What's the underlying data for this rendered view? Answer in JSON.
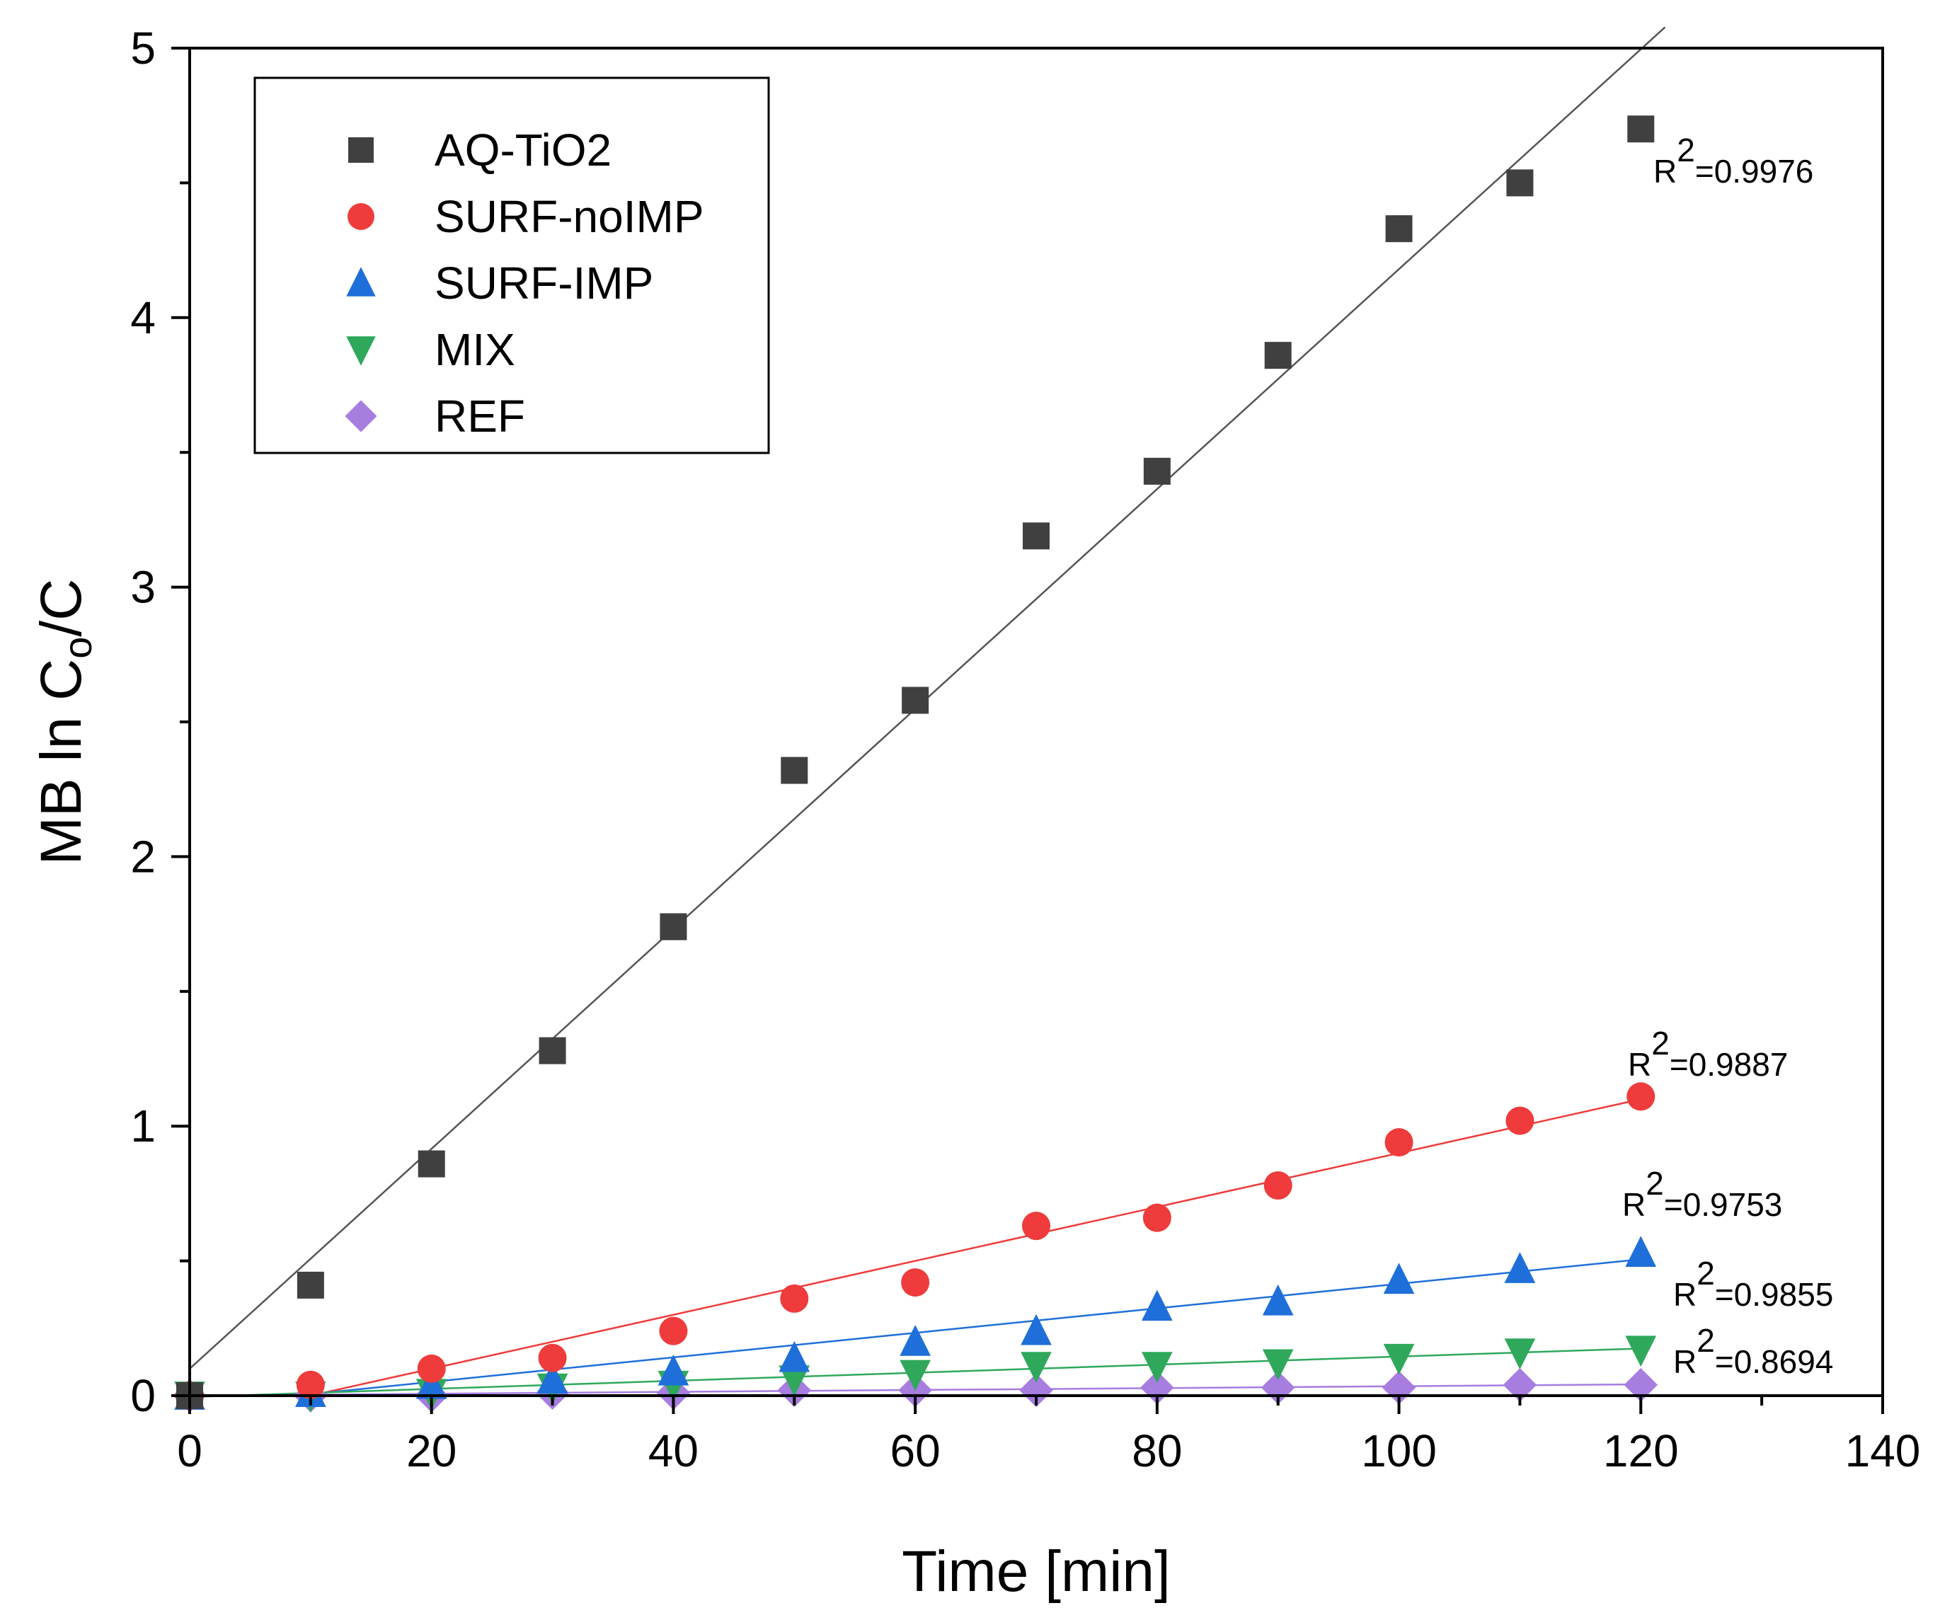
{
  "chart_data": {
    "type": "scatter",
    "title": "",
    "xlabel": "Time [min]",
    "ylabel_main": "MB ln C",
    "ylabel_sub": "o",
    "ylabel_end": "/C",
    "xlim": [
      0,
      140
    ],
    "ylim": [
      0,
      5
    ],
    "xticks": [
      0,
      20,
      40,
      60,
      80,
      100,
      120,
      140
    ],
    "yticks": [
      0,
      1,
      2,
      3,
      4,
      5
    ],
    "grid": false,
    "legend_position": "top-left",
    "x": [
      0,
      10,
      20,
      30,
      40,
      50,
      60,
      70,
      80,
      90,
      100,
      110,
      120
    ],
    "series": [
      {
        "name": "AQ-TiO2",
        "marker": "square",
        "color": "#404040",
        "fit_color": "#555555",
        "values": [
          0,
          0.41,
          0.86,
          1.28,
          1.74,
          2.32,
          2.58,
          3.19,
          3.43,
          3.86,
          4.33,
          4.5,
          4.7
        ],
        "fit": {
          "slope": 0.0408,
          "intercept": 0.1,
          "x_start": 0,
          "x_end": 122
        },
        "r2_label": "R",
        "r2_sup": "2",
        "r2_value": "=0.9976"
      },
      {
        "name": "SURF-noIMP",
        "marker": "circle",
        "color": "#ef3b3b",
        "fit_color": "#ef3b3b",
        "values": [
          0,
          0.04,
          0.1,
          0.14,
          0.24,
          0.36,
          0.42,
          0.63,
          0.66,
          0.78,
          0.94,
          1.02,
          1.11
        ],
        "fit": {
          "slope": 0.01,
          "intercept": -0.1,
          "x_start": 10,
          "x_end": 120
        },
        "r2_label": "R",
        "r2_sup": "2",
        "r2_value": "=0.9887"
      },
      {
        "name": "SURF-IMP",
        "marker": "triangle-up",
        "color": "#1e6fd9",
        "fit_color": "#1e6fd9",
        "values": [
          0,
          0.01,
          0.04,
          0.06,
          0.09,
          0.14,
          0.2,
          0.24,
          0.33,
          0.35,
          0.43,
          0.47,
          0.53
        ],
        "fit": {
          "slope": 0.00455,
          "intercept": -0.04,
          "x_start": 10,
          "x_end": 120
        },
        "r2_label": "R",
        "r2_sup": "2",
        "r2_value": "=0.9753"
      },
      {
        "name": "MIX",
        "marker": "triangle-down",
        "color": "#2fa85c",
        "fit_color": "#2fa85c",
        "values": [
          0,
          0.0,
          0.01,
          0.03,
          0.04,
          0.06,
          0.08,
          0.11,
          0.11,
          0.12,
          0.14,
          0.16,
          0.17
        ],
        "fit": {
          "slope": 0.0015,
          "intercept": -0.005,
          "x_start": 0,
          "x_end": 120
        },
        "r2_label": "R",
        "r2_sup": "2",
        "r2_value": "=0.9855"
      },
      {
        "name": "REF",
        "marker": "diamond",
        "color": "#a77de0",
        "fit_color": "#a77de0",
        "values": [
          0,
          0.0,
          0.0,
          0.01,
          0.01,
          0.02,
          0.02,
          0.02,
          0.03,
          0.03,
          0.03,
          0.04,
          0.04
        ],
        "fit": {
          "slope": 0.00035,
          "intercept": 0.0,
          "x_start": 0,
          "x_end": 120
        },
        "r2_label": "R",
        "r2_sup": "2",
        "r2_value": "=0.8694"
      }
    ]
  }
}
